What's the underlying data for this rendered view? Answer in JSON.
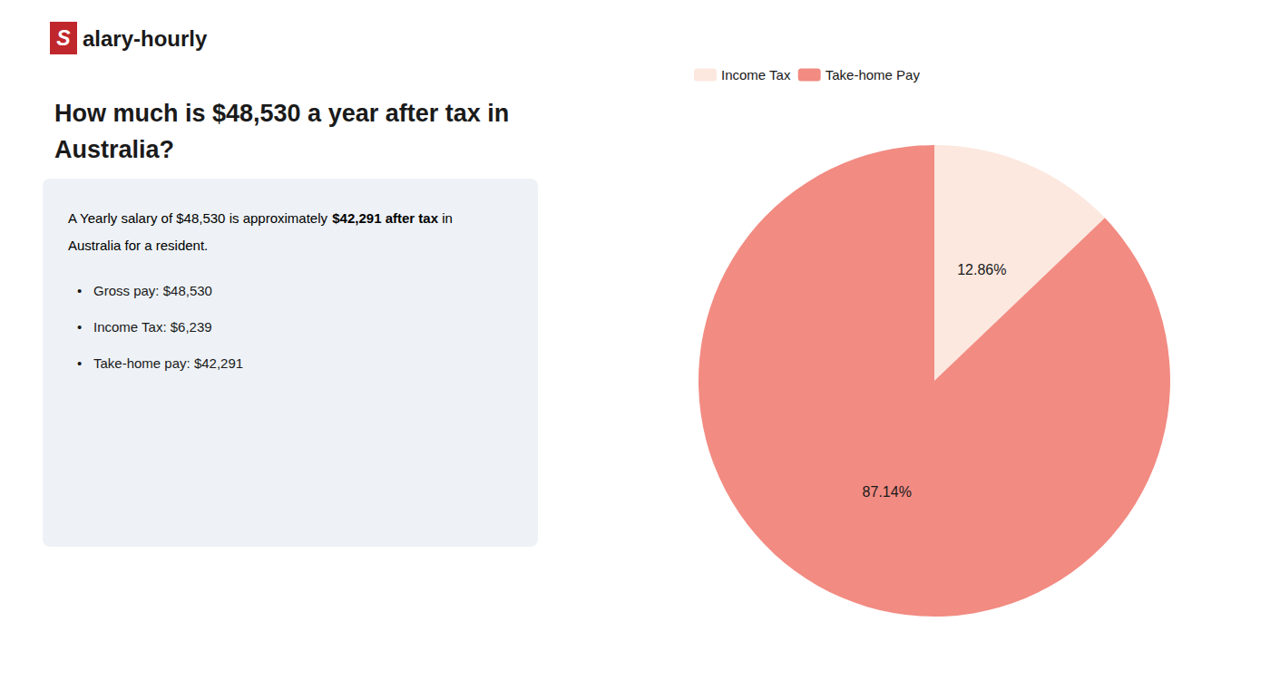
{
  "chart_data": {
    "type": "pie",
    "title": "How much is $48,530 a year after tax in\nAustralia?",
    "logo": [
      {
        "text": "S",
        "color": "#c0272d"
      },
      {
        "text": "alary-hourly"
      }
    ],
    "summary": [
      [
        {
          "text": "A Yearly salary of $48,530 is approximately "
        },
        {
          "text": "$42,291 after tax",
          "color": "#c0272d"
        },
        {
          "text": " in"
        }
      ],
      [
        {
          "text": "Australia for a resident."
        }
      ]
    ],
    "bullet": "•",
    "bullets": [
      "Gross pay: $48,530",
      "Income Tax: $6,239",
      "Take-home pay: $42,291"
    ],
    "categories": [
      "Income Tax",
      "Take-home Pay"
    ],
    "values": [
      12.86,
      87.14
    ],
    "value_labels": [
      "12.86%",
      "87.14%"
    ],
    "colors": [
      "#fce8df",
      "#f28b82"
    ],
    "data_labels": true,
    "legend": "upper left"
  }
}
